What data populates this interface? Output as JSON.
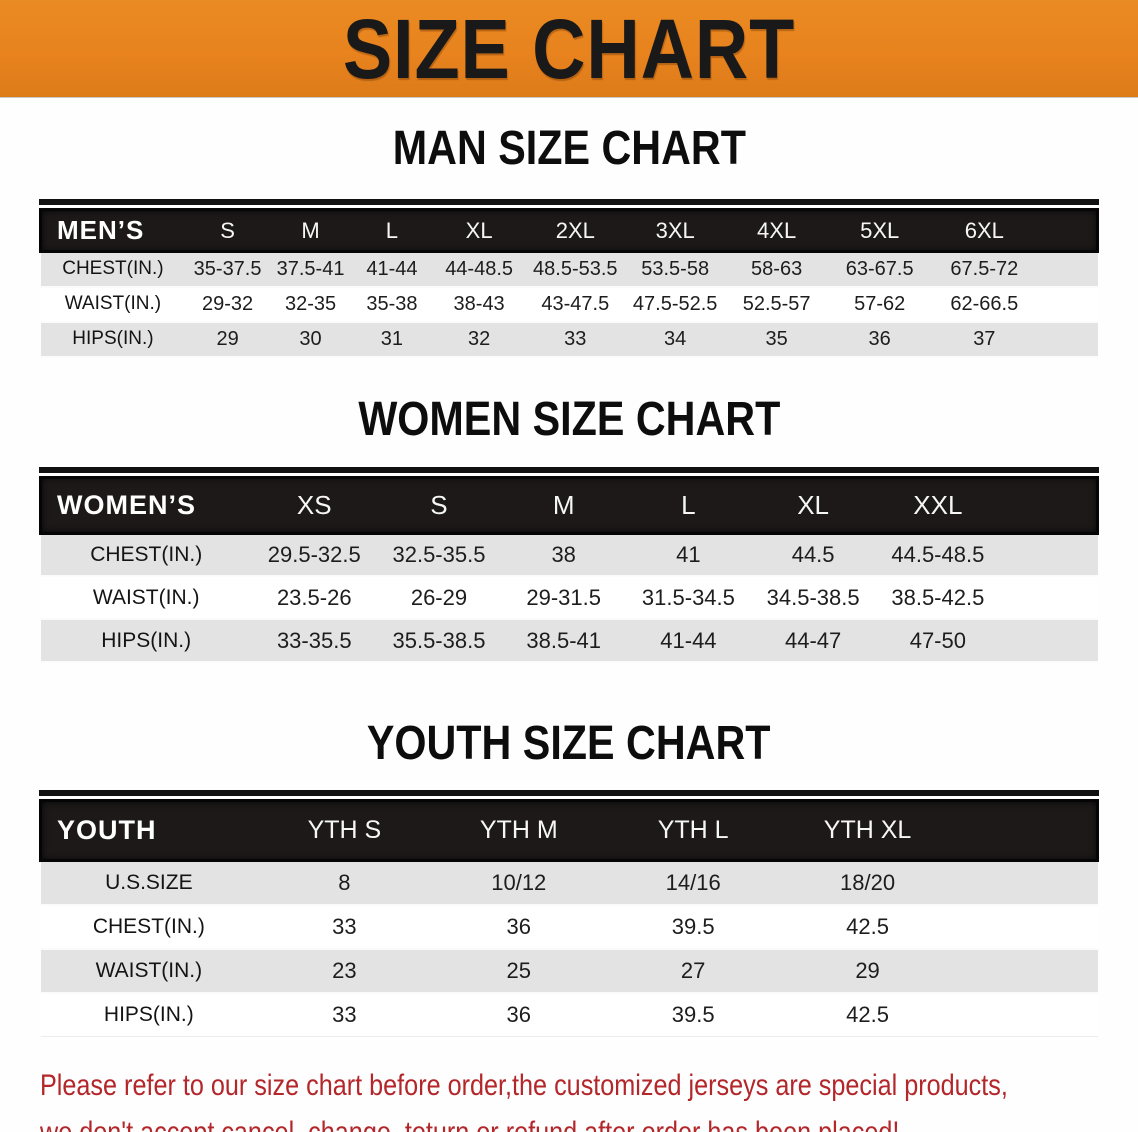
{
  "banner": {
    "title": "SIZE CHART",
    "bg_color": "#e8831e",
    "text_color": "#191919"
  },
  "colors": {
    "header_bar": "#1c1918",
    "row_stripe": "#e3e3e3",
    "notice_red": "#b3262a"
  },
  "sections": {
    "men": {
      "heading": "MAN SIZE CHART",
      "corner": "MEN’S",
      "sizes": [
        "S",
        "M",
        "L",
        "XL",
        "2XL",
        "3XL",
        "4XL",
        "5XL",
        "6XL"
      ],
      "rows": [
        {
          "label": "CHEST(IN.)",
          "values": [
            "35-37.5",
            "37.5-41",
            "41-44",
            "44-48.5",
            "48.5-53.5",
            "53.5-58",
            "58-63",
            "63-67.5",
            "67.5-72"
          ]
        },
        {
          "label": "WAIST(IN.)",
          "values": [
            "29-32",
            "32-35",
            "35-38",
            "38-43",
            "43-47.5",
            "47.5-52.5",
            "52.5-57",
            "57-62",
            "62-66.5"
          ]
        },
        {
          "label": "HIPS(IN.)",
          "values": [
            "29",
            "30",
            "31",
            "32",
            "33",
            "34",
            "35",
            "36",
            "37"
          ]
        }
      ]
    },
    "women": {
      "heading": "WOMEN SIZE CHART",
      "corner": "WOMEN’S",
      "sizes": [
        "XS",
        "S",
        "M",
        "L",
        "XL",
        "XXL"
      ],
      "rows": [
        {
          "label": "CHEST(IN.)",
          "values": [
            "29.5-32.5",
            "32.5-35.5",
            "38",
            "41",
            "44.5",
            "44.5-48.5"
          ]
        },
        {
          "label": "WAIST(IN.)",
          "values": [
            "23.5-26",
            "26-29",
            "29-31.5",
            "31.5-34.5",
            "34.5-38.5",
            "38.5-42.5"
          ]
        },
        {
          "label": "HIPS(IN.)",
          "values": [
            "33-35.5",
            "35.5-38.5",
            "38.5-41",
            "41-44",
            "44-47",
            "47-50"
          ]
        }
      ]
    },
    "youth": {
      "heading": "YOUTH SIZE CHART",
      "corner": "YOUTH",
      "sizes": [
        "YTH S",
        "YTH M",
        "YTH L",
        "YTH XL"
      ],
      "rows": [
        {
          "label": "U.S.SIZE",
          "values": [
            "8",
            "10/12",
            "14/16",
            "18/20"
          ]
        },
        {
          "label": "CHEST(IN.)",
          "values": [
            "33",
            "36",
            "39.5",
            "42.5"
          ]
        },
        {
          "label": "WAIST(IN.)",
          "values": [
            "23",
            "25",
            "27",
            "29"
          ]
        },
        {
          "label": "HIPS(IN.)",
          "values": [
            "33",
            "36",
            "39.5",
            "42.5"
          ]
        }
      ]
    }
  },
  "notice": {
    "line1": "Please refer to our size chart before order,the customized jerseys are special products,",
    "line2": "we don't accept cancel, change, teturn or refund after order has been placed!"
  }
}
